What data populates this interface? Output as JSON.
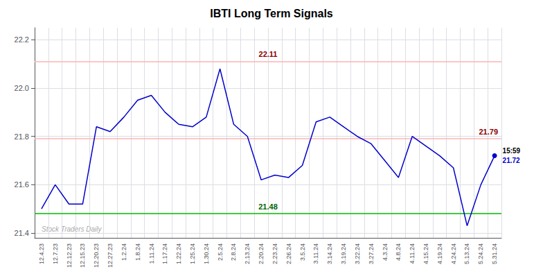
{
  "chart_data": {
    "type": "line",
    "title": "IBTI Long Term Signals",
    "categories": [
      "12.4.23",
      "12.7.23",
      "12.12.23",
      "12.15.23",
      "12.20.23",
      "12.27.23",
      "1.2.24",
      "1.8.24",
      "1.11.24",
      "1.17.24",
      "1.22.24",
      "1.25.24",
      "1.30.24",
      "2.5.24",
      "2.8.24",
      "2.13.24",
      "2.20.24",
      "2.23.24",
      "2.26.24",
      "3.5.24",
      "3.11.24",
      "3.14.24",
      "3.19.24",
      "3.22.24",
      "3.27.24",
      "4.3.24",
      "4.8.24",
      "4.11.24",
      "4.15.24",
      "4.19.24",
      "4.24.24",
      "5.13.24",
      "5.24.24",
      "5.31.24"
    ],
    "values": [
      21.5,
      21.6,
      21.52,
      21.52,
      21.84,
      21.82,
      21.88,
      21.95,
      21.97,
      21.9,
      21.85,
      21.84,
      21.88,
      22.08,
      21.85,
      21.8,
      21.62,
      21.64,
      21.63,
      21.68,
      21.86,
      21.88,
      21.84,
      21.8,
      21.77,
      21.7,
      21.63,
      21.8,
      21.76,
      21.72,
      21.67,
      21.43,
      21.6,
      21.72
    ],
    "color": "#0000cc",
    "ylim": [
      21.38,
      22.25
    ],
    "yticks": [
      21.4,
      21.6,
      21.8,
      {
        "value": 22.0,
        "label": "22.0"
      },
      22.2
    ],
    "grid": true,
    "hlines": [
      {
        "value": 22.11,
        "label": "22.11",
        "color": "#ffb3b3",
        "label_color": "#8b0000"
      },
      {
        "value": 21.79,
        "label": "21.79",
        "color": "#ffb3b3",
        "label_color": "#8b0000"
      },
      {
        "value": 21.48,
        "label": "21.48",
        "color": "#00bb00",
        "label_color": "#006600"
      }
    ],
    "annotations": [
      {
        "text": "15:59",
        "color": "#000000"
      },
      {
        "text": "21.72",
        "color": "#0000cc"
      }
    ],
    "watermark": "Stock Traders Daily"
  }
}
